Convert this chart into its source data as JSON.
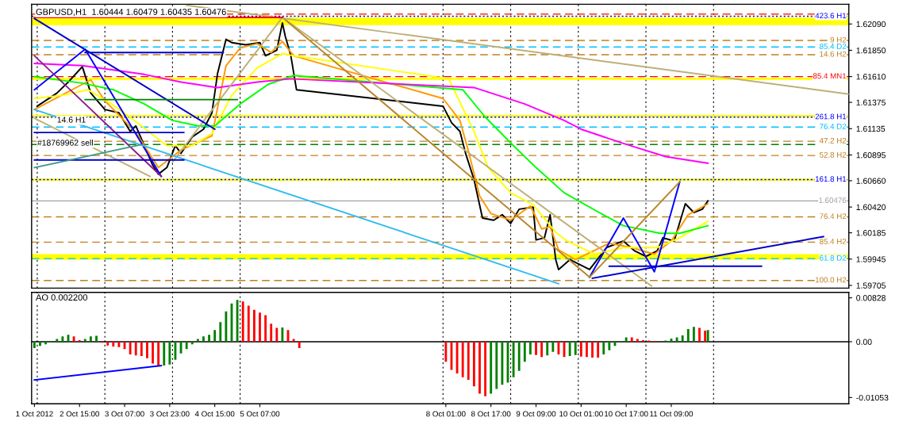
{
  "chart_data": [
    {
      "type": "line",
      "title": "GBPUSD,H1  1.60444 1.60479 1.60435 1.60476",
      "grid": "x",
      "tick_labels": "y",
      "xlim": [
        "2012-10-01T22:00",
        "2012-10-14T00:00"
      ],
      "xticks": [
        {
          "value": "2012-10-02T00:00",
          "label": null
        },
        {
          "value": "2012-10-03T00:00",
          "label": null
        },
        {
          "value": "2012-10-04T00:00",
          "label": null
        },
        {
          "value": "2012-10-05T00:00",
          "label": null
        },
        {
          "value": "2012-10-08T00:00",
          "label": null
        },
        {
          "value": "2012-10-09T00:00",
          "label": null
        },
        {
          "value": "2012-10-10T00:00",
          "label": null
        },
        {
          "value": "2012-10-11T00:00",
          "label": null
        },
        {
          "value": "2012-10-12T00:00",
          "label": null
        }
      ],
      "ylim": [
        1.5968,
        1.6227
      ],
      "yticks": [
        {
          "value": 1.6209,
          "label": "1.62090"
        },
        {
          "value": 1.6185,
          "label": "1.61850"
        },
        {
          "value": 1.6161,
          "label": "1.61610"
        },
        {
          "value": 1.61375,
          "label": "1.61375"
        },
        {
          "value": 1.61135,
          "label": "1.61135"
        },
        {
          "value": 1.60895,
          "label": "1.60895"
        },
        {
          "value": 1.6066,
          "label": "1.60660"
        },
        {
          "value": 1.6042,
          "label": "1.60420"
        },
        {
          "value": 1.60185,
          "label": "1.60185"
        },
        {
          "value": 1.59945,
          "label": "1.59945"
        },
        {
          "value": 1.59705,
          "label": "1.59705"
        }
      ],
      "bands": [
        {
          "axis": "y",
          "from": 1.6208,
          "to": 1.6215,
          "color": "#ffff00"
        },
        {
          "axis": "y",
          "from": 1.6158,
          "to": 1.616,
          "color": "#ffff00"
        },
        {
          "axis": "y",
          "from": 1.6124,
          "to": 1.6126,
          "color": "#ffff00"
        },
        {
          "axis": "y",
          "from": 1.6066,
          "to": 1.6068,
          "color": "#ffff00"
        },
        {
          "axis": "y",
          "from": 1.5994,
          "to": 1.5999,
          "color": "#ffff00"
        }
      ],
      "ref_lines": [
        {
          "axis": "y",
          "value": 1.6218,
          "color": "#ff3300",
          "line_style": "dashed"
        },
        {
          "axis": "y",
          "value": 1.6216,
          "label": "423.6 H1",
          "color": "#0000ff",
          "line_style": "dotted"
        },
        {
          "axis": "y",
          "value": 1.6194,
          "label": "9 H2",
          "color": "#c08020",
          "line_style": "dashed"
        },
        {
          "axis": "y",
          "value": 1.6188,
          "label": "85.4 D2",
          "color": "#00bfff",
          "line_style": "dashed"
        },
        {
          "axis": "y",
          "value": 1.6181,
          "label": "14.6 H2",
          "color": "#c08020",
          "line_style": "dashed"
        },
        {
          "axis": "y",
          "value": 1.6161,
          "label": "85.4 MN1",
          "color": "#ff0000",
          "line_style": "dashed"
        },
        {
          "axis": "y",
          "value": 1.6124,
          "label": "261.8 H1",
          "color": "#0000ff",
          "line_style": "dotted"
        },
        {
          "axis": "y",
          "value": 1.6115,
          "label": "76.4 D2",
          "color": "#00bfff",
          "line_style": "dashed"
        },
        {
          "axis": "y",
          "value": 1.6102,
          "label": "47.2 H2",
          "color": "#c08020",
          "line_style": "dashed"
        },
        {
          "axis": "y",
          "value": 1.6099,
          "color": "#008000",
          "line_style": "dashed"
        },
        {
          "axis": "y",
          "value": 1.6089,
          "label": "52.8 H2",
          "color": "#c08020",
          "line_style": "dashed"
        },
        {
          "axis": "y",
          "value": 1.6067,
          "label": "161.8 H1",
          "color": "#0000ff",
          "line_style": "dotted"
        },
        {
          "axis": "y",
          "value": 1.60476,
          "label": "1.60476",
          "color": "#a0a0a0",
          "line_style": "solid"
        },
        {
          "axis": "y",
          "value": 1.6033,
          "label": "76.4 H2",
          "color": "#c08020",
          "line_style": "dashed"
        },
        {
          "axis": "y",
          "value": 1.601,
          "label": "85.4 H2",
          "color": "#c08020",
          "line_style": "dashed"
        },
        {
          "axis": "y",
          "value": 1.5995,
          "label": "61.8 D2",
          "color": "#00bfff",
          "line_style": "dashed"
        },
        {
          "axis": "y",
          "value": 1.5975,
          "label": "100.0 H2",
          "color": "#c08020",
          "line_style": "dashed"
        }
      ],
      "annotations": [
        {
          "text": "14.6 H1",
          "x": "2012-10-02T07:00",
          "y": 1.6121
        },
        {
          "text": "#18769962 sell",
          "x": "2012-10-02T00:00",
          "y": 1.61
        }
      ],
      "series": [
        {
          "color": "#000000",
          "x": [
            "2012-10-02T00:00",
            "2012-10-02T07:00",
            "2012-10-02T11:00",
            "2012-10-02T16:00",
            "2012-10-02T19:00",
            "2012-10-03T00:00",
            "2012-10-03T05:00",
            "2012-10-03T09:00",
            "2012-10-03T11:00",
            "2012-10-03T14:00",
            "2012-10-03T17:00",
            "2012-10-03T19:00",
            "2012-10-03T22:00",
            "2012-10-04T01:00",
            "2012-10-04T03:00",
            "2012-10-04T07:00",
            "2012-10-04T11:00",
            "2012-10-04T14:00",
            "2012-10-04T16:00",
            "2012-10-04T19:00",
            "2012-10-04T21:00",
            "2012-10-05T02:00",
            "2012-10-05T07:00",
            "2012-10-05T09:00",
            "2012-10-05T13:00",
            "2012-10-05T15:00",
            "2012-10-05T16:00",
            "2012-10-05T18:00",
            "2012-10-05T20:00",
            "2012-10-08T00:00",
            "2012-10-08T03:00",
            "2012-10-08T06:00",
            "2012-10-08T08:00",
            "2012-10-08T11:00",
            "2012-10-08T14:00",
            "2012-10-08T18:00",
            "2012-10-08T21:00",
            "2012-10-09T00:00",
            "2012-10-09T03:00",
            "2012-10-09T08:00",
            "2012-10-09T09:00",
            "2012-10-09T12:00",
            "2012-10-09T14:00",
            "2012-10-09T16:00",
            "2012-10-09T17:00",
            "2012-10-09T21:00",
            "2012-10-10T04:00",
            "2012-10-10T10:00",
            "2012-10-10T16:00",
            "2012-10-10T20:00",
            "2012-10-11T00:00",
            "2012-10-11T04:00",
            "2012-10-11T06:00",
            "2012-10-11T10:00",
            "2012-10-11T14:00",
            "2012-10-11T17:00",
            "2012-10-11T20:00",
            "2012-10-11T22:00"
          ],
          "values": [
            1.6134,
            1.6146,
            1.6156,
            1.617,
            1.6146,
            1.6131,
            1.6128,
            1.6111,
            1.6116,
            1.6098,
            1.608,
            1.6072,
            1.6078,
            1.6098,
            1.6091,
            1.6106,
            1.6113,
            1.6128,
            1.6164,
            1.6195,
            1.6192,
            1.619,
            1.6192,
            1.618,
            1.6185,
            1.621,
            1.6198,
            1.618,
            1.6149,
            1.6134,
            1.6119,
            1.6111,
            1.6091,
            1.6067,
            1.6032,
            1.603,
            1.6035,
            1.6027,
            1.604,
            1.6042,
            1.6012,
            1.6014,
            1.6035,
            1.5994,
            1.5985,
            1.5994,
            1.5985,
            1.6005,
            1.6011,
            1.6002,
            1.5997,
            1.6002,
            1.6014,
            1.6011,
            1.6045,
            1.6037,
            1.604,
            1.60476
          ]
        },
        {
          "color": "#ff9900",
          "x": [
            "2012-10-01T23:00",
            "2012-10-02T19:00",
            "2012-10-03T00:00",
            "2012-10-03T11:00",
            "2012-10-03T19:00",
            "2012-10-04T03:00",
            "2012-10-04T14:00",
            "2012-10-04T19:00",
            "2012-10-05T00:00",
            "2012-10-05T06:00",
            "2012-10-05T11:00",
            "2012-10-05T15:00",
            "2012-10-05T19:00",
            "2012-10-08T00:00",
            "2012-10-08T06:00",
            "2012-10-08T09:00",
            "2012-10-08T13:00",
            "2012-10-08T17:00",
            "2012-10-09T00:00",
            "2012-10-09T07:00",
            "2012-10-09T11:00",
            "2012-10-09T14:00",
            "2012-10-09T17:00",
            "2012-10-09T23:00",
            "2012-10-10T11:00",
            "2012-10-10T19:00",
            "2012-10-11T03:00",
            "2012-10-11T09:00",
            "2012-10-11T15:00",
            "2012-10-11T22:00"
          ],
          "values": [
            1.6131,
            1.6158,
            1.6139,
            1.611,
            1.6078,
            1.6094,
            1.6107,
            1.6171,
            1.6187,
            1.6191,
            1.6183,
            1.6193,
            1.618,
            1.6141,
            1.6121,
            1.6093,
            1.6052,
            1.6036,
            1.603,
            1.6043,
            1.6022,
            1.6024,
            1.6003,
            1.5994,
            1.6009,
            1.6005,
            1.5999,
            1.6011,
            1.6035,
            1.6045
          ]
        },
        {
          "color": "#ffff00",
          "x": [
            "2012-10-01T23:00",
            "2012-10-02T09:00",
            "2012-10-02T18:00",
            "2012-10-03T03:00",
            "2012-10-03T13:00",
            "2012-10-03T22:00",
            "2012-10-04T07:00",
            "2012-10-04T14:00",
            "2012-10-04T21:00",
            "2012-10-05T06:00",
            "2012-10-05T15:00",
            "2012-10-05T19:00",
            "2012-10-08T02:00",
            "2012-10-08T11:00",
            "2012-10-08T16:00",
            "2012-10-09T00:00",
            "2012-10-09T08:00",
            "2012-10-09T16:00",
            "2012-10-09T20:00",
            "2012-10-10T06:00",
            "2012-10-10T16:00",
            "2012-10-11T04:00",
            "2012-10-11T12:00",
            "2012-10-11T22:00"
          ],
          "values": [
            1.6141,
            1.6144,
            1.6149,
            1.6135,
            1.6116,
            1.6098,
            1.6098,
            1.6109,
            1.6144,
            1.6169,
            1.6182,
            1.618,
            1.6159,
            1.6111,
            1.6078,
            1.6055,
            1.6044,
            1.6019,
            1.6011,
            1.5999,
            1.6005,
            1.6005,
            1.6014,
            1.6029
          ]
        },
        {
          "color": "#00ff00",
          "x": [
            "2012-10-01T23:00",
            "2012-10-02T16:00",
            "2012-10-03T03:00",
            "2012-10-03T14:00",
            "2012-10-04T00:00",
            "2012-10-04T09:00",
            "2012-10-04T15:00",
            "2012-10-05T00:00",
            "2012-10-05T10:00",
            "2012-10-05T19:00",
            "2012-10-08T07:00",
            "2012-10-08T15:00",
            "2012-10-09T01:00",
            "2012-10-09T09:00",
            "2012-10-09T19:00",
            "2012-10-10T06:00",
            "2012-10-10T16:00",
            "2012-10-11T05:00",
            "2012-10-11T12:00",
            "2012-10-11T22:00"
          ],
          "values": [
            1.6161,
            1.6155,
            1.6149,
            1.6136,
            1.6121,
            1.6116,
            1.6116,
            1.6136,
            1.6154,
            1.6162,
            1.6149,
            1.6124,
            1.6098,
            1.6078,
            1.6055,
            1.6039,
            1.6025,
            1.6018,
            1.6018,
            1.6025
          ]
        },
        {
          "color": "#ff00ff",
          "x": [
            "2012-10-01T23:00",
            "2012-10-02T16:00",
            "2012-10-03T14:00",
            "2012-10-04T03:00",
            "2012-10-04T16:00",
            "2012-10-05T06:00",
            "2012-10-05T18:00",
            "2012-10-08T11:00",
            "2012-10-09T05:00",
            "2012-10-09T19:00",
            "2012-10-10T01:00",
            "2012-10-10T16:00",
            "2012-10-11T07:00",
            "2012-10-11T22:00"
          ],
          "values": [
            1.6173,
            1.6171,
            1.6163,
            1.6156,
            1.6151,
            1.6156,
            1.6159,
            1.6151,
            1.6136,
            1.6121,
            1.6113,
            1.61,
            1.6088,
            1.6082
          ]
        },
        {
          "color": "#0000ff",
          "x": [
            "2012-10-01T23:00",
            "2012-10-02T17:00",
            "2012-10-03T20:00"
          ],
          "values": [
            1.6149,
            1.6186,
            1.607
          ]
        },
        {
          "color": "#0000ff",
          "x": [
            "2012-10-10T04:00",
            "2012-10-10T16:00",
            "2012-10-11T03:00",
            "2012-10-11T12:00"
          ],
          "values": [
            1.5978,
            1.6032,
            1.5983,
            1.6065
          ]
        },
        {
          "color": "#bdb076",
          "x": [
            "2012-10-04T00:00",
            "2012-10-05T15:00",
            "2012-10-11T02:00"
          ],
          "values": [
            1.6083,
            1.6215,
            1.597
          ]
        },
        {
          "color": "#b8862b",
          "x": [
            "2012-10-05T15:00",
            "2012-10-10T04:00",
            "2012-10-11T12:00"
          ],
          "values": [
            1.6215,
            1.5978,
            1.6065
          ]
        },
        {
          "color": "#bdb076",
          "x": [
            "2012-10-04T05:00",
            "2012-10-14T00:00"
          ],
          "values": [
            1.6226,
            1.6145
          ]
        },
        {
          "color": "#bdb076",
          "x": [
            "2012-10-01T23:00",
            "2012-10-03T16:00"
          ],
          "values": [
            1.6123,
            1.607
          ]
        },
        {
          "color": "#33bbee",
          "x": [
            "2012-10-01T23:00",
            "2012-10-09T17:00"
          ],
          "values": [
            1.6131,
            1.5972
          ]
        },
        {
          "color": "#8b1a8b",
          "x": [
            "2012-10-01T23:00",
            "2012-10-03T20:00"
          ],
          "values": [
            1.618,
            1.607
          ]
        },
        {
          "color": "#0000cc",
          "x": [
            "2012-10-01T23:00",
            "2012-10-04T15:00"
          ],
          "values": [
            1.6214,
            1.6113
          ]
        },
        {
          "color": "#0000cc",
          "x": [
            "2012-10-10T05:00",
            "2012-10-13T15:00"
          ],
          "values": [
            1.5977,
            1.6015
          ]
        },
        {
          "color": "#0000cc",
          "x": [
            "2012-10-10T11:00",
            "2012-10-12T17:00"
          ],
          "values": [
            1.5988,
            1.5988
          ]
        },
        {
          "color": "#0000cc",
          "x": [
            "2012-10-02T17:00",
            "2012-10-04T18:00"
          ],
          "values": [
            1.6183,
            1.6183
          ]
        },
        {
          "color": "#0000cc",
          "x": [
            "2012-10-01T23:00",
            "2012-10-04T04:00"
          ],
          "values": [
            1.611,
            1.611
          ]
        },
        {
          "color": "#0000cc",
          "x": [
            "2012-10-01T23:00",
            "2012-10-04T04:00"
          ],
          "values": [
            1.6085,
            1.6085
          ]
        },
        {
          "color": "#008000",
          "x": [
            "2012-10-02T17:00",
            "2012-10-04T23:00"
          ],
          "values": [
            1.614,
            1.614
          ]
        },
        {
          "color": "#3a9a8a",
          "x": [
            "2012-10-01T23:00",
            "2012-10-03T13:00"
          ],
          "values": [
            1.6078,
            1.6099
          ]
        },
        {
          "color": "#ff0000",
          "x": [
            "2012-10-01T23:00",
            "2012-10-05T15:00"
          ],
          "values": [
            1.6215,
            1.6215
          ]
        }
      ]
    },
    {
      "type": "bar",
      "title": "AO 0.002200",
      "grid": "x",
      "xlim": [
        "2012-10-01T22:00",
        "2012-10-14T00:00"
      ],
      "xticks": [
        {
          "value": "2012-10-01T23:00",
          "label": "1 Oct 2012"
        },
        {
          "value": "2012-10-02T15:00",
          "label": "2 Oct 15:00"
        },
        {
          "value": "2012-10-03T07:00",
          "label": "3 Oct 07:00"
        },
        {
          "value": "2012-10-03T23:00",
          "label": "3 Oct 23:00"
        },
        {
          "value": "2012-10-04T15:00",
          "label": "4 Oct 15:00"
        },
        {
          "value": "2012-10-05T07:00",
          "label": "5 Oct 07:00"
        },
        {
          "value": "2012-10-08T01:00",
          "label": "8 Oct 01:00"
        },
        {
          "value": "2012-10-08T17:00",
          "label": "8 Oct 17:00"
        },
        {
          "value": "2012-10-09T09:00",
          "label": "9 Oct 09:00"
        },
        {
          "value": "2012-10-10T01:00",
          "label": "10 Oct 01:00"
        },
        {
          "value": "2012-10-10T17:00",
          "label": "10 Oct 17:00"
        },
        {
          "value": "2012-10-11T09:00",
          "label": "11 Oct 09:00"
        },
        {
          "value": "2012-10-02T00:00",
          "label": null
        },
        {
          "value": "2012-10-03T00:00",
          "label": null
        },
        {
          "value": "2012-10-04T00:00",
          "label": null
        },
        {
          "value": "2012-10-05T00:00",
          "label": null
        },
        {
          "value": "2012-10-08T00:00",
          "label": null
        },
        {
          "value": "2012-10-09T00:00",
          "label": null
        },
        {
          "value": "2012-10-10T00:00",
          "label": null
        },
        {
          "value": "2012-10-11T00:00",
          "label": null
        },
        {
          "value": "2012-10-12T00:00",
          "label": null
        }
      ],
      "ylim": [
        -0.0117,
        0.0093
      ],
      "yticks": [
        {
          "value": 0.00828,
          "label": "0.00828"
        },
        {
          "value": 0,
          "label": "0.00"
        },
        {
          "value": -0.01053,
          "label": "-0.01053"
        }
      ],
      "ref_lines": [
        {
          "axis": "y",
          "value": 0,
          "color": "#000000",
          "line_style": "solid"
        }
      ],
      "series": [
        {
          "type": "bar",
          "x": [
            "2012-10-01T23:00",
            "2012-10-02T01:00",
            "2012-10-02T03:00",
            "2012-10-02T05:00",
            "2012-10-02T07:00",
            "2012-10-02T09:00",
            "2012-10-02T11:00",
            "2012-10-02T13:00",
            "2012-10-02T15:00",
            "2012-10-02T17:00",
            "2012-10-02T19:00",
            "2012-10-02T21:00",
            "2012-10-02T23:00",
            "2012-10-03T01:00",
            "2012-10-03T03:00",
            "2012-10-03T05:00",
            "2012-10-03T07:00",
            "2012-10-03T09:00",
            "2012-10-03T11:00",
            "2012-10-03T13:00",
            "2012-10-03T15:00",
            "2012-10-03T17:00",
            "2012-10-03T19:00",
            "2012-10-03T21:00",
            "2012-10-03T23:00",
            "2012-10-04T01:00",
            "2012-10-04T03:00",
            "2012-10-04T05:00",
            "2012-10-04T07:00",
            "2012-10-04T09:00",
            "2012-10-04T11:00",
            "2012-10-04T13:00",
            "2012-10-04T15:00",
            "2012-10-04T17:00",
            "2012-10-04T19:00",
            "2012-10-04T21:00",
            "2012-10-04T23:00",
            "2012-10-05T01:00",
            "2012-10-05T03:00",
            "2012-10-05T05:00",
            "2012-10-05T07:00",
            "2012-10-05T09:00",
            "2012-10-05T11:00",
            "2012-10-05T13:00",
            "2012-10-05T15:00",
            "2012-10-05T17:00",
            "2012-10-05T19:00",
            "2012-10-05T21:00",
            "2012-10-08T01:00",
            "2012-10-08T03:00",
            "2012-10-08T05:00",
            "2012-10-08T07:00",
            "2012-10-08T09:00",
            "2012-10-08T11:00",
            "2012-10-08T13:00",
            "2012-10-08T15:00",
            "2012-10-08T17:00",
            "2012-10-08T19:00",
            "2012-10-08T21:00",
            "2012-10-08T23:00",
            "2012-10-09T01:00",
            "2012-10-09T03:00",
            "2012-10-09T05:00",
            "2012-10-09T07:00",
            "2012-10-09T09:00",
            "2012-10-09T11:00",
            "2012-10-09T13:00",
            "2012-10-09T15:00",
            "2012-10-09T17:00",
            "2012-10-09T19:00",
            "2012-10-09T21:00",
            "2012-10-09T23:00",
            "2012-10-10T01:00",
            "2012-10-10T03:00",
            "2012-10-10T05:00",
            "2012-10-10T07:00",
            "2012-10-10T09:00",
            "2012-10-10T11:00",
            "2012-10-10T13:00",
            "2012-10-10T15:00",
            "2012-10-10T17:00",
            "2012-10-10T19:00",
            "2012-10-10T21:00",
            "2012-10-10T23:00",
            "2012-10-11T01:00",
            "2012-10-11T03:00",
            "2012-10-11T05:00",
            "2012-10-11T07:00",
            "2012-10-11T09:00",
            "2012-10-11T11:00",
            "2012-10-11T13:00",
            "2012-10-11T15:00",
            "2012-10-11T17:00",
            "2012-10-11T19:00",
            "2012-10-11T21:00",
            "2012-10-11T22:00"
          ],
          "values": [
            -0.0012,
            -0.0008,
            -0.0005,
            -0.0001,
            0.0005,
            0.001,
            0.0013,
            0.001,
            0.0003,
            0.0005,
            0.001,
            0.0011,
            -0.0002,
            -0.0007,
            -0.0009,
            -0.001,
            -0.0014,
            -0.0024,
            -0.0026,
            -0.0027,
            -0.0031,
            -0.0041,
            -0.0046,
            -0.0045,
            -0.0043,
            -0.0034,
            -0.0022,
            -0.0014,
            -0.0005,
            0.0005,
            0.001,
            0.0013,
            0.0022,
            0.0037,
            0.0057,
            0.0072,
            0.0079,
            0.0076,
            0.0068,
            0.006,
            0.0055,
            0.005,
            0.0034,
            0.0026,
            0.0027,
            0.0022,
            0.0005,
            -0.0012,
            -0.0038,
            -0.0053,
            -0.006,
            -0.0067,
            -0.0072,
            -0.0084,
            -0.0098,
            -0.0103,
            -0.0098,
            -0.0089,
            -0.0081,
            -0.0077,
            -0.0067,
            -0.0055,
            -0.0038,
            -0.0024,
            -0.0025,
            -0.0029,
            -0.0026,
            -0.0019,
            -0.0024,
            -0.0029,
            -0.0027,
            -0.0025,
            -0.0028,
            -0.0029,
            -0.003,
            -0.003,
            -0.0024,
            -0.0016,
            -0.0008,
            0.0001,
            0.0008,
            0.0008,
            0.0005,
            0.0003,
            0.0002,
            0.0001,
            0.0,
            0.0002,
            0.0006,
            0.0008,
            0.0012,
            0.0024,
            0.0028,
            0.0026,
            0.0021,
            0.0022
          ],
          "colors": [
            "#008000",
            "#008000",
            "#008000",
            "#008000",
            "#008000",
            "#008000",
            "#008000",
            "#ff0000",
            "#ff0000",
            "#008000",
            "#008000",
            "#008000",
            "#ff0000",
            "#ff0000",
            "#ff0000",
            "#ff0000",
            "#ff0000",
            "#ff0000",
            "#ff0000",
            "#ff0000",
            "#ff0000",
            "#ff0000",
            "#ff0000",
            "#008000",
            "#008000",
            "#008000",
            "#008000",
            "#008000",
            "#008000",
            "#008000",
            "#008000",
            "#008000",
            "#008000",
            "#008000",
            "#008000",
            "#008000",
            "#008000",
            "#ff0000",
            "#ff0000",
            "#ff0000",
            "#ff0000",
            "#ff0000",
            "#ff0000",
            "#ff0000",
            "#008000",
            "#ff0000",
            "#ff0000",
            "#ff0000",
            "#ff0000",
            "#ff0000",
            "#ff0000",
            "#ff0000",
            "#ff0000",
            "#ff0000",
            "#ff0000",
            "#ff0000",
            "#008000",
            "#008000",
            "#008000",
            "#008000",
            "#008000",
            "#008000",
            "#008000",
            "#008000",
            "#ff0000",
            "#ff0000",
            "#008000",
            "#008000",
            "#ff0000",
            "#ff0000",
            "#008000",
            "#008000",
            "#ff0000",
            "#ff0000",
            "#ff0000",
            "#ff0000",
            "#008000",
            "#008000",
            "#008000",
            "#008000",
            "#008000",
            "#ff0000",
            "#ff0000",
            "#ff0000",
            "#ff0000",
            "#ff0000",
            "#ff0000",
            "#008000",
            "#008000",
            "#008000",
            "#008000",
            "#008000",
            "#008000",
            "#ff0000",
            "#ff0000",
            "#008000"
          ]
        },
        {
          "type": "line",
          "color": "#0000ff",
          "x": [
            "2012-10-01T23:00",
            "2012-10-03T20:00"
          ],
          "values": [
            -0.0072,
            -0.0045
          ]
        }
      ]
    }
  ]
}
